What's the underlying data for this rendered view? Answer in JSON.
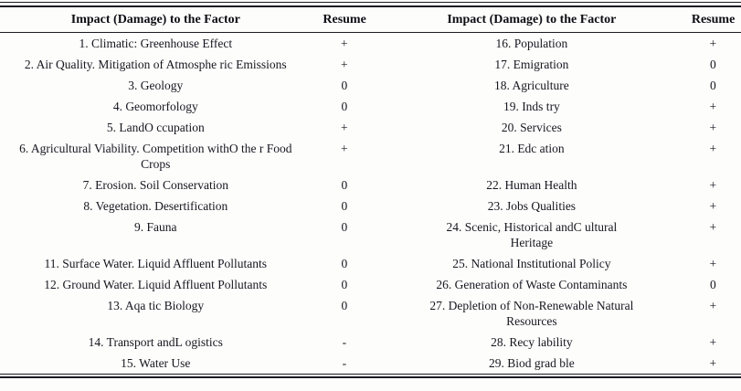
{
  "table": {
    "columns": [
      "Impact (Damage) to the Factor",
      "Resume",
      "Impact (Damage) to the Factor",
      "Resume"
    ],
    "rows": [
      {
        "left_factor": "1. Climatic: Greenhouse Effect",
        "left_resume": "+",
        "right_factor": "16. Population",
        "right_resume": "+"
      },
      {
        "left_factor": "2. Air Quality. Mitigation of Atmosphe ric Emissions",
        "left_resume": "+",
        "right_factor": "17. Emigration",
        "right_resume": "0"
      },
      {
        "left_factor": "3. Geology",
        "left_resume": "0",
        "right_factor": "18. Agriculture",
        "right_resume": "0"
      },
      {
        "left_factor": "4. Geomorfology",
        "left_resume": "0",
        "right_factor": "19. Inds try",
        "right_resume": "+"
      },
      {
        "left_factor": "5. LandO ccupation",
        "left_resume": "+",
        "right_factor": "20. Services",
        "right_resume": "+"
      },
      {
        "left_factor": "6. Agricultural Viability. Competition withO the r Food\nCrops",
        "left_resume": "+",
        "right_factor": "21. Edc ation",
        "right_resume": "+"
      },
      {
        "left_factor": "7. Erosion. Soil Conservation",
        "left_resume": "0",
        "right_factor": "22. Human Health",
        "right_resume": "+"
      },
      {
        "left_factor": "8. Vegetation. Desertification",
        "left_resume": "0",
        "right_factor": "23. Jobs Qualities",
        "right_resume": "+"
      },
      {
        "left_factor": "9. Fauna",
        "left_resume": "0",
        "right_factor": "24. Scenic, Historical andC ultural\nHeritage",
        "right_resume": "+"
      },
      {
        "left_factor": "11. Surface Water. Liquid Affluent Pollutants",
        "left_resume": "0",
        "right_factor": "25. National Institutional Policy",
        "right_resume": "+"
      },
      {
        "left_factor": "12. Ground Water. Liquid Affluent Pollutants",
        "left_resume": "0",
        "right_factor": "26. Generation of Waste Contaminants",
        "right_resume": "0"
      },
      {
        "left_factor": "13. Aqa tic Biology",
        "left_resume": "0",
        "right_factor": "27. Depletion of Non-Renewable Natural\nResources",
        "right_resume": "+"
      },
      {
        "left_factor": "14. Transport andL ogistics",
        "left_resume": "-",
        "right_factor": "28. Recy lability",
        "right_resume": "+"
      },
      {
        "left_factor": "15. Water Use",
        "left_resume": "-",
        "right_factor": "29. Biod grad ble",
        "right_resume": "+"
      }
    ]
  }
}
